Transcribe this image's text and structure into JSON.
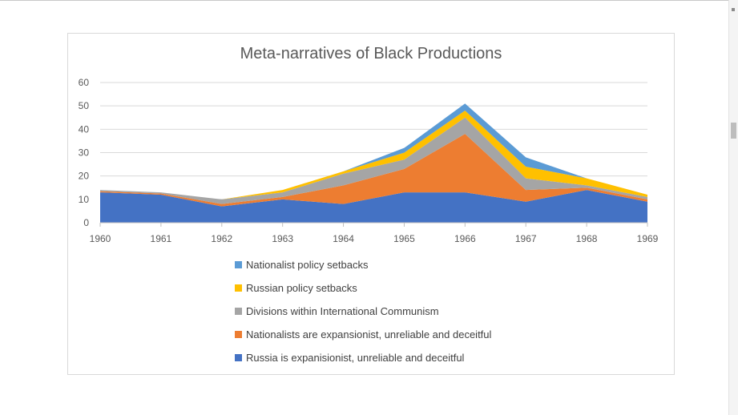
{
  "chart_data": {
    "type": "area",
    "stacked": true,
    "title": "Meta-narratives of Black Productions",
    "x": [
      "1960",
      "1961",
      "1962",
      "1963",
      "1964",
      "1965",
      "1966",
      "1967",
      "1968",
      "1969"
    ],
    "ylim": [
      0,
      60
    ],
    "yticks": [
      "0",
      "10",
      "20",
      "30",
      "40",
      "50",
      "60"
    ],
    "xlabel": "",
    "ylabel": "",
    "grid": true,
    "legend_position": "bottom",
    "series": [
      {
        "name": "Russia is expanisionist, unreliable and deceitful",
        "color": "#4472C4",
        "values": [
          13,
          12,
          7,
          10,
          8,
          13,
          13,
          9,
          14,
          9
        ]
      },
      {
        "name": "Nationalists are expansionist, unreliable and deceitful",
        "color": "#ED7D31",
        "values": [
          0.5,
          0.5,
          1,
          1,
          8,
          10,
          25,
          5,
          1,
          1
        ]
      },
      {
        "name": "Divisions within International Communism",
        "color": "#A5A5A5",
        "values": [
          0.5,
          0.5,
          2,
          2,
          5,
          4,
          7,
          5,
          1,
          1
        ]
      },
      {
        "name": "Russian policy setbacks",
        "color": "#FFC000",
        "values": [
          0,
          0,
          0,
          1,
          1,
          3,
          3,
          5,
          3,
          1
        ]
      },
      {
        "name": "Nationalist policy setbacks",
        "color": "#5B9BD5",
        "values": [
          0,
          0,
          0,
          0,
          0,
          2,
          3,
          4,
          0,
          0
        ]
      }
    ]
  }
}
